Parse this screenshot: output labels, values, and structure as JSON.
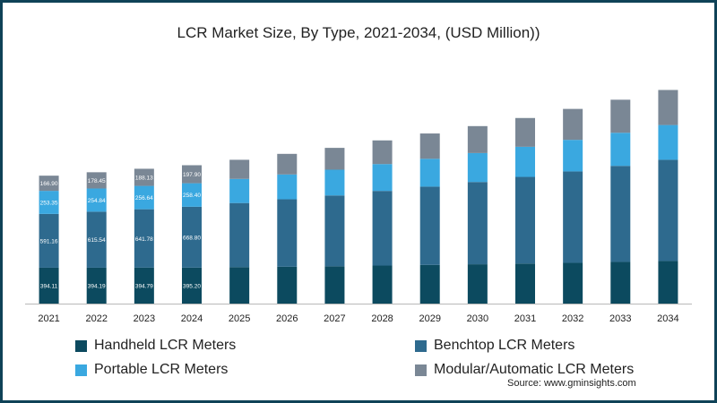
{
  "chart_data": {
    "type": "bar",
    "stacked": true,
    "title": "LCR Market Size, By Type, 2021-2034, (USD Million))",
    "xlabel": "",
    "ylabel": "",
    "categories": [
      "2021",
      "2022",
      "2023",
      "2024",
      "2025",
      "2026",
      "2027",
      "2028",
      "2029",
      "2030",
      "2031",
      "2032",
      "2033",
      "2034"
    ],
    "series": [
      {
        "name": "Handheld LCR Meters",
        "color": "#0c4a5f",
        "values": [
          394.11,
          394.19,
          394.79,
          395.2,
          400,
          405,
          410,
          418,
          425,
          432,
          440,
          448,
          458,
          468
        ],
        "labels": [
          "394.11",
          "394.19",
          "394.79",
          "395.20"
        ]
      },
      {
        "name": "Benchtop LCR Meters",
        "color": "#2e6a8e",
        "values": [
          591.16,
          615.54,
          641.78,
          668.8,
          705,
          741,
          778,
          820,
          860,
          904,
          952,
          1004,
          1055,
          1112
        ],
        "labels": [
          "591.16",
          "615.54",
          "641.78",
          "668.80"
        ]
      },
      {
        "name": "Portable LCR Meters",
        "color": "#3aa8e0",
        "values": [
          253.35,
          254.84,
          256.64,
          258.4,
          265,
          273,
          283,
          295,
          306,
          318,
          331,
          347,
          364,
          382
        ],
        "labels": [
          "253.35",
          "254.84",
          "256.64",
          "258.40"
        ]
      },
      {
        "name": "Modular/Automatic LCR Meters",
        "color": "#7a8795",
        "values": [
          166.9,
          178.45,
          188.13,
          197.9,
          210,
          226,
          240,
          260,
          278,
          296,
          316,
          340,
          363,
          385
        ],
        "labels": [
          "166.90",
          "178.45",
          "188.13",
          "197.90"
        ]
      }
    ],
    "ylim": [
      0,
      2450
    ],
    "grid": false,
    "legend": "bottom"
  },
  "source_text": "Source: www.gminsights.com"
}
